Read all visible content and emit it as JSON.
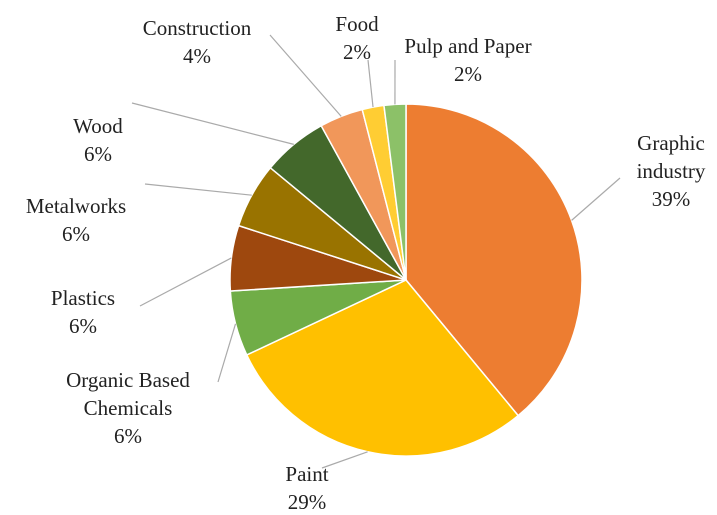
{
  "chart_data": {
    "type": "pie",
    "categories": [
      "Graphic industry",
      "Paint",
      "Organic Based Chemicals",
      "Plastics",
      "Metalworks",
      "Wood",
      "Construction",
      "Food",
      "Pulp and Paper"
    ],
    "values": [
      39,
      29,
      6,
      6,
      6,
      6,
      4,
      2,
      2
    ],
    "value_labels": [
      "39%",
      "29%",
      "6%",
      "6%",
      "6%",
      "6%",
      "4%",
      "2%",
      "2%"
    ],
    "colors": [
      "#ED7D31",
      "#FFC000",
      "#70AD47",
      "#9E480E",
      "#997300",
      "#43682B",
      "#F1975A",
      "#FFCD33",
      "#8CC168"
    ]
  }
}
